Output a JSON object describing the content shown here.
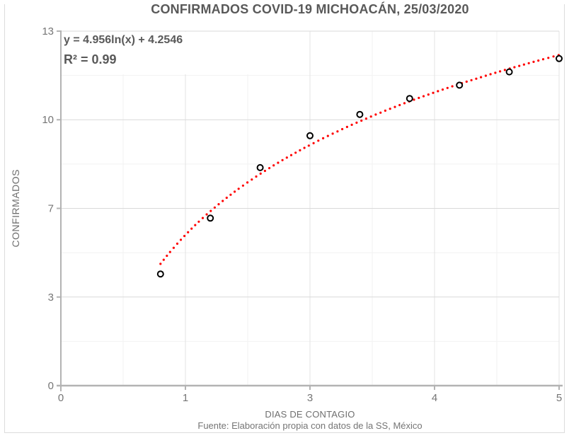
{
  "source_note": "Fuente: Elaboración propia con datos de la SS, México",
  "chart_data": {
    "type": "scatter",
    "title": "CONFIRMADOS COVID-19 MICHOACÁN, 25/03/2020",
    "xlabel": "DIAS DE CONTAGIO",
    "ylabel": "CONFIRMADOS",
    "xlim": [
      0,
      5
    ],
    "ylim": [
      0,
      13.333
    ],
    "grid": true,
    "legend": "none",
    "x_ticks": [
      {
        "value": 0,
        "label": "0"
      },
      {
        "value": 1.25,
        "label": "1"
      },
      {
        "value": 2.5,
        "label": "3"
      },
      {
        "value": 3.75,
        "label": "4"
      },
      {
        "value": 5,
        "label": "5"
      }
    ],
    "y_ticks": [
      {
        "value": 0,
        "label": "0"
      },
      {
        "value": 3.333,
        "label": "3"
      },
      {
        "value": 6.667,
        "label": "7"
      },
      {
        "value": 10,
        "label": "10"
      },
      {
        "value": 13.333,
        "label": "13"
      }
    ],
    "x_minor_ticks": [
      0.625,
      1.875,
      3.125,
      4.375
    ],
    "y_minor_ticks": [
      1.667,
      5.0,
      8.333,
      11.667
    ],
    "series": [
      {
        "name": "CONFIRMADOS",
        "marker": "open-circle",
        "points": [
          [
            1.0,
            4.2
          ],
          [
            1.5,
            6.3
          ],
          [
            2.0,
            8.2
          ],
          [
            2.5,
            9.4
          ],
          [
            3.0,
            10.2
          ],
          [
            3.5,
            10.8
          ],
          [
            4.0,
            11.3
          ],
          [
            4.5,
            11.8
          ],
          [
            5.0,
            12.3
          ]
        ]
      }
    ],
    "trendline": {
      "type": "logarithmic",
      "equation": "y = 4.956ln(x) + 4.2546",
      "r2": "R² = 0.99",
      "a": 4.956,
      "b": 4.2546,
      "draw_a": 4.88,
      "draw_b": 4.58,
      "domain": [
        1,
        5
      ],
      "style": "dotted",
      "color": "#ff0000"
    },
    "colors": {
      "title_text": "#595959",
      "tick_text": "#757575",
      "axis_title_text": "#6f6f6f",
      "grid_major_h": "#d9d9d9",
      "grid_major_v": "#e3e3e3",
      "grid_minor": "#f2f2f2",
      "axis_line": "#b3b3b3",
      "trendline": "#ff0000",
      "point_stroke": "#000000",
      "point_fill": "#ffffff",
      "frame_border": "#dcdcdc"
    }
  }
}
